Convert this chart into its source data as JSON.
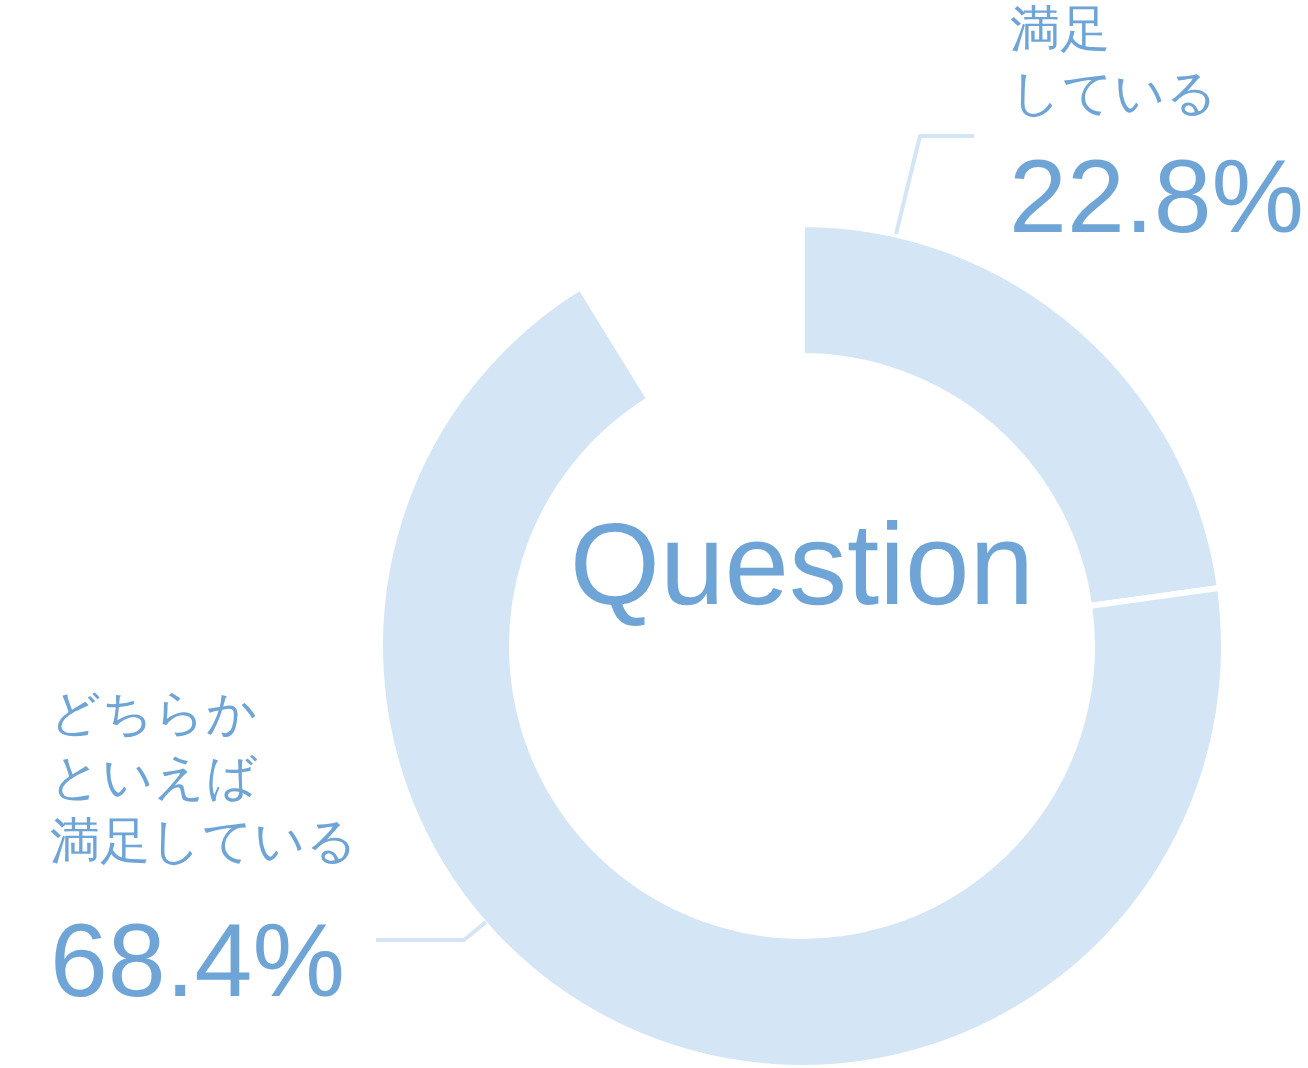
{
  "chart_data": {
    "type": "donut",
    "title": "Question",
    "categories": [
      "満足している",
      "どちらかといえば満足している"
    ],
    "values": [
      22.8,
      68.4
    ],
    "colors": [
      "#d4e6f5",
      "#d4e6f5"
    ],
    "value_labels": [
      "22.8%",
      "68.4%"
    ]
  }
}
